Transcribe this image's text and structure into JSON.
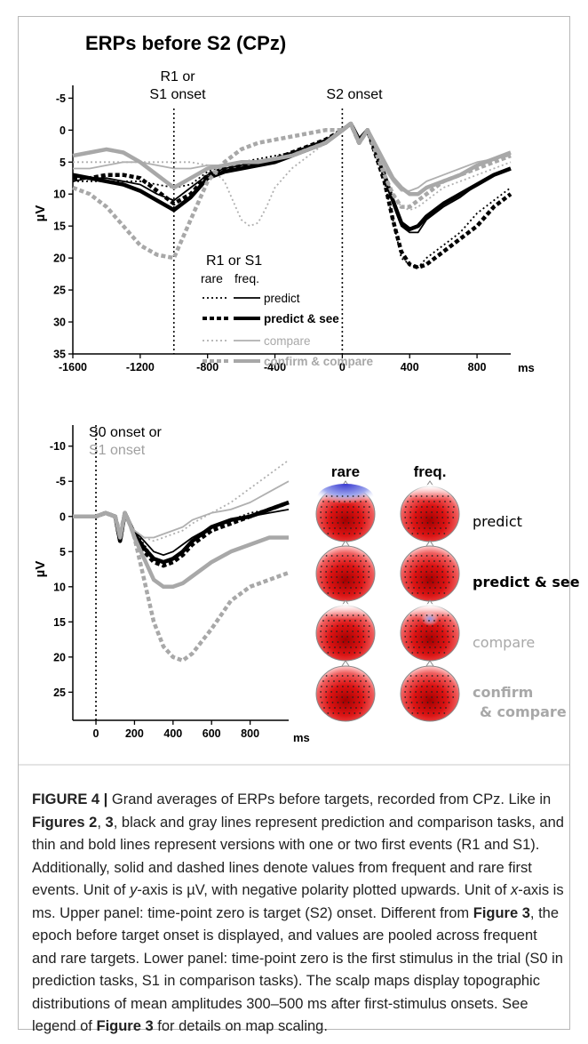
{
  "top_panel": {
    "title": "ERPs before S2 (CPz)",
    "marker1_line1": "R1 or",
    "marker1_line2": "S1 onset",
    "marker2": "S2 onset",
    "ylabel": "µV",
    "x_unit": "ms",
    "legend_title": "R1 or S1",
    "legend_rare": "rare",
    "legend_freq": "freq.",
    "legend_items": [
      "predict",
      "predict & see",
      "compare",
      "confirm & compare"
    ]
  },
  "bottom_panel": {
    "marker_line1": "S0 onset or",
    "marker_line2": "S1 onset",
    "ylabel": "µV",
    "x_unit": "ms",
    "maps_header_rare": "rare",
    "maps_header_freq": "freq.",
    "map_labels": [
      "predict",
      "predict & see",
      "compare",
      "confirm",
      "& compare"
    ]
  },
  "caption": {
    "figure_label": "FIGURE 4 |",
    "text_1": " Grand averages of ERPs before targets, recorded from CPz. Like in ",
    "ref_1": "Figures 2",
    "text_2": ", ",
    "ref_2": "3",
    "text_3": ", black and gray lines represent prediction and comparison tasks, and thin and bold lines represent versions with one or two first events (R1 and S1). Additionally, solid and dashed lines denote values from frequent and rare first events. Unit of ",
    "italic_y": "y",
    "text_4": "-axis is µV, with negative polarity plotted upwards. Unit of ",
    "italic_x": "x",
    "text_5": "-axis is ms. Upper panel: time-point zero is target (S2) onset. Different from ",
    "ref_3": "Figure 3",
    "text_6": ", the epoch before target onset is displayed, and values are pooled across frequent and rare targets. Lower panel: time-point zero is the first stimulus in the trial (S0 in prediction tasks, S1 in comparison tasks). The scalp maps display topographic distributions of mean amplitudes 300–500 ms after first-stimulus onsets. See legend of ",
    "ref_4": "Figure 3",
    "text_7": " for details on map scaling."
  },
  "chart_data": [
    {
      "type": "line",
      "title": "ERPs before S2 (CPz)",
      "xlabel": "ms",
      "ylabel": "µV",
      "xlim": [
        -1600,
        1000
      ],
      "ylim": [
        -7,
        35
      ],
      "y_inverted": true,
      "xticks": [
        -1600,
        -1200,
        -800,
        -400,
        0,
        400,
        800
      ],
      "yticks": [
        -5,
        0,
        5,
        10,
        15,
        20,
        25,
        30,
        35
      ],
      "vlines": [
        -1000,
        0
      ],
      "series": [
        {
          "name": "predict (rare)",
          "color": "#000000",
          "width": 1.8,
          "dash": "2,3",
          "x": [
            -1600,
            -1500,
            -1400,
            -1300,
            -1200,
            -1100,
            -1000,
            -900,
            -800,
            -700,
            -600,
            -500,
            -400,
            -300,
            -200,
            -100,
            0,
            50,
            100,
            150,
            200,
            250,
            300,
            350,
            400,
            450,
            500,
            600,
            700,
            800,
            900,
            1000
          ],
          "y": [
            8,
            8,
            8,
            8,
            8,
            8.5,
            9,
            8.5,
            6.5,
            5.5,
            5,
            4.5,
            4,
            3.5,
            2.5,
            1.5,
            0,
            -1,
            2,
            0,
            4,
            8,
            14,
            20,
            21,
            21.5,
            20,
            18,
            16,
            13,
            11,
            9
          ]
        },
        {
          "name": "predict (freq.)",
          "color": "#000000",
          "width": 1.8,
          "dash": "",
          "x": [
            -1600,
            -1500,
            -1400,
            -1300,
            -1200,
            -1100,
            -1000,
            -900,
            -800,
            -700,
            -600,
            -500,
            -400,
            -300,
            -200,
            -100,
            0,
            50,
            100,
            150,
            200,
            250,
            300,
            350,
            400,
            450,
            500,
            600,
            700,
            800,
            900,
            1000
          ],
          "y": [
            8,
            7.5,
            7.5,
            8,
            8.5,
            10,
            11,
            9,
            7,
            6,
            5.5,
            5,
            4.5,
            3.5,
            2.5,
            1.5,
            0,
            -1,
            1.5,
            0,
            3.5,
            7,
            11.5,
            15,
            16,
            16,
            14,
            12,
            10.5,
            8.5,
            7,
            6
          ]
        },
        {
          "name": "predict & see (rare)",
          "color": "#000000",
          "width": 4.5,
          "dash": "5,3",
          "x": [
            -1600,
            -1500,
            -1400,
            -1300,
            -1200,
            -1100,
            -1000,
            -900,
            -800,
            -700,
            -600,
            -500,
            -400,
            -300,
            -200,
            -100,
            0,
            50,
            100,
            150,
            200,
            250,
            300,
            350,
            400,
            450,
            500,
            600,
            700,
            800,
            900,
            1000
          ],
          "y": [
            7.5,
            7.5,
            7,
            7,
            7.5,
            9.5,
            11.5,
            10,
            7,
            6,
            5.5,
            5,
            4.5,
            3.5,
            2.5,
            1.5,
            0,
            -1,
            2,
            0,
            4,
            8,
            14,
            19,
            21,
            21.5,
            21,
            19,
            17,
            15,
            12,
            10
          ]
        },
        {
          "name": "predict & see (freq.)",
          "color": "#000000",
          "width": 4.5,
          "dash": "",
          "x": [
            -1600,
            -1500,
            -1400,
            -1300,
            -1200,
            -1100,
            -1000,
            -900,
            -800,
            -700,
            -600,
            -500,
            -400,
            -300,
            -200,
            -100,
            0,
            50,
            100,
            150,
            200,
            250,
            300,
            350,
            400,
            450,
            500,
            600,
            700,
            800,
            900,
            1000
          ],
          "y": [
            7,
            7.5,
            8,
            8.5,
            9.5,
            11,
            12.5,
            10.5,
            7.5,
            6.5,
            6,
            5.5,
            5,
            4,
            3,
            2,
            0,
            -1,
            1.5,
            0,
            3.5,
            7,
            11,
            14.5,
            15.5,
            15,
            13.5,
            11.5,
            10,
            8.5,
            7,
            6
          ]
        },
        {
          "name": "compare (rare)",
          "color": "#b0b0b0",
          "width": 1.8,
          "dash": "2,3",
          "x": [
            -1600,
            -1500,
            -1400,
            -1300,
            -1200,
            -1100,
            -1000,
            -900,
            -800,
            -700,
            -650,
            -600,
            -550,
            -500,
            -450,
            -400,
            -300,
            -200,
            -100,
            0,
            50,
            100,
            150,
            200,
            250,
            300,
            350,
            400,
            450,
            500,
            600,
            700,
            800,
            900,
            1000
          ],
          "y": [
            5,
            5,
            5,
            5,
            5,
            5,
            5,
            5,
            5.5,
            8,
            11,
            14,
            15,
            14.5,
            12,
            9,
            6,
            4,
            2,
            0,
            -1,
            2,
            0,
            3,
            7,
            10,
            12,
            12.5,
            12,
            11,
            9,
            8,
            7,
            6,
            5
          ]
        },
        {
          "name": "compare (freq.)",
          "color": "#b0b0b0",
          "width": 1.8,
          "dash": "",
          "x": [
            -1600,
            -1500,
            -1400,
            -1300,
            -1200,
            -1100,
            -1000,
            -900,
            -800,
            -700,
            -600,
            -500,
            -400,
            -300,
            -200,
            -100,
            0,
            50,
            100,
            150,
            200,
            250,
            300,
            350,
            400,
            450,
            500,
            600,
            700,
            800,
            900,
            1000
          ],
          "y": [
            6,
            6,
            5.5,
            5,
            5,
            5.5,
            6,
            6,
            5.5,
            5.5,
            5,
            5,
            4.5,
            4,
            3,
            2,
            0,
            -1,
            2,
            0,
            3,
            6,
            8,
            9.5,
            9.5,
            9,
            8,
            7,
            6,
            5,
            4.5,
            4
          ]
        },
        {
          "name": "confirm & compare (rare)",
          "color": "#a8a8a8",
          "width": 4.5,
          "dash": "5,3",
          "x": [
            -1600,
            -1500,
            -1400,
            -1300,
            -1200,
            -1100,
            -1000,
            -900,
            -800,
            -700,
            -600,
            -500,
            -400,
            -300,
            -200,
            -100,
            0,
            50,
            100,
            150,
            200,
            250,
            300,
            350,
            400,
            450,
            500,
            600,
            700,
            800,
            900,
            1000
          ],
          "y": [
            9,
            10,
            12,
            15,
            18,
            19.5,
            20,
            14,
            8,
            5,
            3,
            2,
            1.5,
            1,
            0.5,
            0,
            0,
            -1,
            2,
            0,
            3.5,
            7,
            10,
            12,
            12,
            11,
            10,
            8,
            7,
            6,
            5,
            4
          ]
        },
        {
          "name": "confirm & compare (freq.)",
          "color": "#a8a8a8",
          "width": 4.5,
          "dash": "",
          "x": [
            -1600,
            -1500,
            -1400,
            -1300,
            -1200,
            -1100,
            -1000,
            -900,
            -800,
            -700,
            -600,
            -500,
            -400,
            -300,
            -200,
            -100,
            0,
            50,
            100,
            150,
            200,
            250,
            300,
            350,
            400,
            450,
            500,
            600,
            700,
            800,
            900,
            1000
          ],
          "y": [
            4,
            3.5,
            3,
            3.5,
            5,
            7,
            9,
            7.5,
            6,
            5.5,
            5,
            5,
            4.5,
            4,
            3,
            2,
            0,
            -1,
            2,
            0,
            2.5,
            5,
            7.5,
            9,
            10,
            10,
            9,
            8,
            7,
            5.5,
            4.5,
            3.5
          ]
        }
      ]
    },
    {
      "type": "line",
      "xlabel": "ms",
      "ylabel": "µV",
      "xlim": [
        -120,
        1000
      ],
      "ylim": [
        -13,
        29
      ],
      "y_inverted": true,
      "xticks": [
        0,
        200,
        400,
        600,
        800
      ],
      "yticks": [
        -10,
        -5,
        0,
        5,
        10,
        15,
        20,
        25
      ],
      "vlines": [
        0
      ],
      "series": [
        {
          "name": "predict (rare)",
          "color": "#000000",
          "width": 1.8,
          "dash": "2,3",
          "x": [
            -120,
            0,
            50,
            100,
            125,
            150,
            175,
            200,
            250,
            300,
            350,
            400,
            450,
            500,
            600,
            700,
            800,
            900,
            1000
          ],
          "y": [
            0,
            0,
            -0.5,
            0,
            3,
            -0.5,
            1,
            2,
            4,
            6,
            6.5,
            6,
            5,
            3.5,
            1.5,
            0.5,
            -0.5,
            -1,
            -2
          ]
        },
        {
          "name": "predict (freq.)",
          "color": "#000000",
          "width": 1.8,
          "dash": "",
          "x": [
            -120,
            0,
            50,
            100,
            125,
            150,
            175,
            200,
            250,
            300,
            350,
            400,
            450,
            500,
            600,
            700,
            800,
            900,
            1000
          ],
          "y": [
            0,
            0,
            -0.5,
            0,
            3,
            -0.5,
            1,
            2,
            3.5,
            5,
            5.5,
            5,
            4,
            3,
            1.5,
            0.5,
            0,
            -0.5,
            -1
          ]
        },
        {
          "name": "predict & see (rare)",
          "color": "#000000",
          "width": 4.5,
          "dash": "5,3",
          "x": [
            -120,
            0,
            50,
            100,
            125,
            150,
            175,
            200,
            250,
            300,
            350,
            400,
            450,
            500,
            600,
            700,
            800,
            900,
            1000
          ],
          "y": [
            0,
            0,
            -0.5,
            0,
            3.5,
            -0.5,
            1,
            2.5,
            5,
            6.5,
            7,
            6.5,
            5.5,
            4,
            2,
            1,
            0,
            -1,
            -2
          ]
        },
        {
          "name": "predict & see (freq.)",
          "color": "#000000",
          "width": 4.5,
          "dash": "",
          "x": [
            -120,
            0,
            50,
            100,
            125,
            150,
            175,
            200,
            250,
            300,
            350,
            400,
            450,
            500,
            600,
            700,
            800,
            900,
            1000
          ],
          "y": [
            0,
            0,
            -0.5,
            0,
            3.5,
            -0.5,
            1,
            2.5,
            4.5,
            6,
            6.5,
            6,
            5,
            3.5,
            1.5,
            0.5,
            0,
            -1,
            -2
          ]
        },
        {
          "name": "compare (rare)",
          "color": "#b0b0b0",
          "width": 1.8,
          "dash": "2,3",
          "x": [
            -120,
            0,
            50,
            100,
            125,
            150,
            175,
            200,
            250,
            300,
            350,
            400,
            450,
            500,
            600,
            700,
            800,
            900,
            1000
          ],
          "y": [
            0,
            0,
            -0.5,
            0,
            2.5,
            -0.5,
            1,
            2,
            3,
            3.5,
            3,
            2.5,
            2,
            1,
            -0.5,
            -2,
            -4,
            -6,
            -8
          ]
        },
        {
          "name": "compare (freq.)",
          "color": "#b0b0b0",
          "width": 1.8,
          "dash": "",
          "x": [
            -120,
            0,
            50,
            100,
            125,
            150,
            175,
            200,
            250,
            300,
            350,
            400,
            450,
            500,
            600,
            700,
            800,
            900,
            1000
          ],
          "y": [
            0,
            0,
            -0.5,
            0,
            2.5,
            -0.5,
            1,
            2,
            3,
            3,
            2.5,
            2,
            1.5,
            0.5,
            -0.5,
            -1,
            -2,
            -3.5,
            -5
          ]
        },
        {
          "name": "confirm & compare (rare)",
          "color": "#a8a8a8",
          "width": 4.5,
          "dash": "5,3",
          "x": [
            -120,
            0,
            50,
            100,
            125,
            150,
            175,
            200,
            250,
            300,
            350,
            400,
            450,
            500,
            600,
            700,
            800,
            900,
            1000
          ],
          "y": [
            0,
            0,
            -0.5,
            0,
            2.5,
            -0.5,
            1,
            3,
            9,
            15,
            18.5,
            20,
            20.5,
            19.5,
            16,
            12,
            10,
            9,
            8
          ]
        },
        {
          "name": "confirm & compare (freq.)",
          "color": "#a8a8a8",
          "width": 4.5,
          "dash": "",
          "x": [
            -120,
            0,
            50,
            100,
            125,
            150,
            175,
            200,
            250,
            300,
            350,
            400,
            450,
            500,
            600,
            700,
            800,
            900,
            1000
          ],
          "y": [
            0,
            0,
            -0.5,
            0,
            3,
            -0.5,
            1,
            3,
            6,
            9,
            10,
            10,
            9.5,
            8.5,
            6.5,
            5,
            4,
            3,
            3
          ]
        }
      ]
    }
  ]
}
